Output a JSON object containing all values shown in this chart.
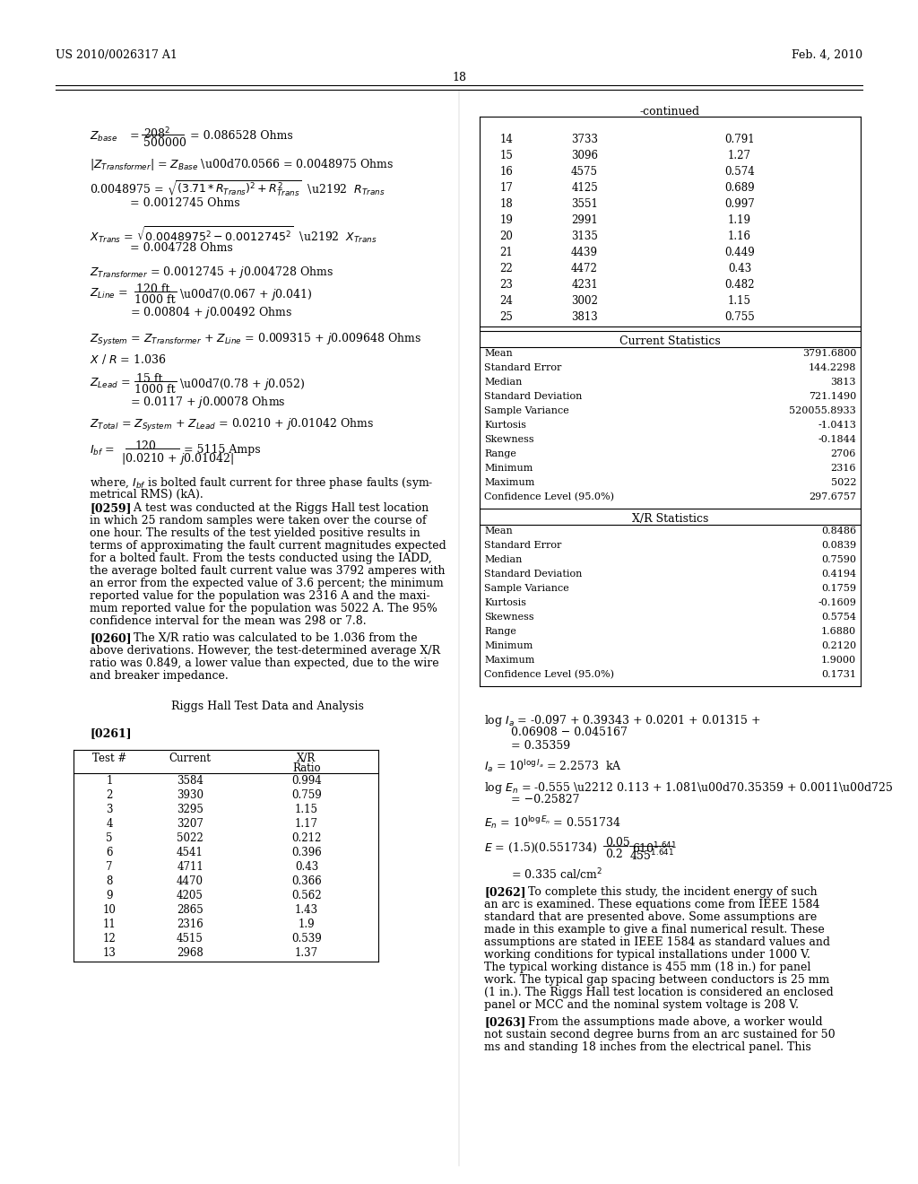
{
  "header_left": "US 2010/0026317 A1",
  "header_right": "Feb. 4, 2010",
  "page_number": "18",
  "continued_label": "-continued",
  "table1_headers": [
    "Test #",
    "Current",
    "X/R\nRatio"
  ],
  "table1_rows": [
    [
      1,
      3584,
      0.994
    ],
    [
      2,
      3930,
      0.759
    ],
    [
      3,
      3295,
      1.15
    ],
    [
      4,
      3207,
      1.17
    ],
    [
      5,
      5022,
      0.212
    ],
    [
      6,
      4541,
      0.396
    ],
    [
      7,
      4711,
      0.43
    ],
    [
      8,
      4470,
      0.366
    ],
    [
      9,
      4205,
      0.562
    ],
    [
      10,
      2865,
      1.43
    ],
    [
      11,
      2316,
      1.9
    ],
    [
      12,
      4515,
      0.539
    ],
    [
      13,
      2968,
      1.37
    ]
  ],
  "table2_rows": [
    [
      14,
      3733,
      0.791
    ],
    [
      15,
      3096,
      1.27
    ],
    [
      16,
      4575,
      0.574
    ],
    [
      17,
      4125,
      0.689
    ],
    [
      18,
      3551,
      0.997
    ],
    [
      19,
      2991,
      1.19
    ],
    [
      20,
      3135,
      1.16
    ],
    [
      21,
      4439,
      0.449
    ],
    [
      22,
      4472,
      0.43
    ],
    [
      23,
      4231,
      0.482
    ],
    [
      24,
      3002,
      1.15
    ],
    [
      25,
      3813,
      0.755
    ]
  ],
  "current_stats_label": "Current Statistics",
  "current_stats": [
    [
      "Mean",
      "3791.6800"
    ],
    [
      "Standard Error",
      "144.2298"
    ],
    [
      "Median",
      "3813"
    ],
    [
      "Standard Deviation",
      "721.1490"
    ],
    [
      "Sample Variance",
      "520055.8933"
    ],
    [
      "Kurtosis",
      "-1.0413"
    ],
    [
      "Skewness",
      "-0.1844"
    ],
    [
      "Range",
      "2706"
    ],
    [
      "Minimum",
      "2316"
    ],
    [
      "Maximum",
      "5022"
    ],
    [
      "Confidence Level (95.0%)",
      "297.6757"
    ]
  ],
  "xr_stats_label": "X/R Statistics",
  "xr_stats": [
    [
      "Mean",
      "0.8486"
    ],
    [
      "Standard Error",
      "0.0839"
    ],
    [
      "Median",
      "0.7590"
    ],
    [
      "Standard Deviation",
      "0.4194"
    ],
    [
      "Sample Variance",
      "0.1759"
    ],
    [
      "Kurtosis",
      "-0.1609"
    ],
    [
      "Skewness",
      "0.5754"
    ],
    [
      "Range",
      "1.6880"
    ],
    [
      "Minimum",
      "0.2120"
    ],
    [
      "Maximum",
      "1.9000"
    ],
    [
      "Confidence Level (95.0%)",
      "0.1731"
    ]
  ],
  "left_equations": [
    {
      "type": "eq",
      "text": "Z_base_eq"
    },
    {
      "type": "eq",
      "text": "Z_transformer_eq"
    },
    {
      "type": "eq",
      "text": "R_trans_eq"
    },
    {
      "type": "eq",
      "text": "X_trans_eq"
    },
    {
      "type": "eq",
      "text": "Z_transformer_val"
    },
    {
      "type": "eq",
      "text": "Z_line_eq"
    },
    {
      "type": "eq",
      "text": "Z_system_eq"
    },
    {
      "type": "eq",
      "text": "XR_ratio"
    },
    {
      "type": "eq",
      "text": "Z_lead_eq"
    },
    {
      "type": "eq",
      "text": "Z_total_eq"
    },
    {
      "type": "eq",
      "text": "I_bf_eq"
    }
  ],
  "para_0259": "[0259]   A test was conducted at the Riggs Hall test location in which 25 random samples were taken over the course of one hour. The results of the test yielded positive results in terms of approximating the fault current magnitudes expected for a bolted fault. From the tests conducted using the IADD, the average bolted fault current value was 3792 amperes with an error from the expected value of 3.6 percent; the minimum reported value for the population was 2316 A and the maxi-mum reported value for the population was 5022 A. The 95% confidence interval for the mean was 298 or 7.8.",
  "para_0260": "[0260]   The X/R ratio was calculated to be 1.036 from the above derivations. However, the test-determined average X/R ratio was 0.849, a lower value than expected, due to the wire and breaker impedance.",
  "section_title": "Riggs Hall Test Data and Analysis",
  "para_0261_label": "[0261]",
  "para_0262_text": "[0262]   To complete this study, the incident energy of such an arc is examined. These equations come from IEEE 1584 standard that are presented above. Some assumptions are made in this example to give a final numerical result. These assumptions are stated in IEEE 1584 as standard values and working conditions for typical installations under 1000 V. The typical working distance is 455 mm (18 in.) for panel work. The typical gap spacing between conductors is 25 mm (1 in.). The Riggs Hall test location is considered an enclosed panel or MCC and the nominal system voltage is 208 V.",
  "para_0263_text": "[0263]   From the assumptions made above, a worker would not sustain second degree burns from an arc sustained for 50 ms and standing 18 inches from the electrical panel. This"
}
